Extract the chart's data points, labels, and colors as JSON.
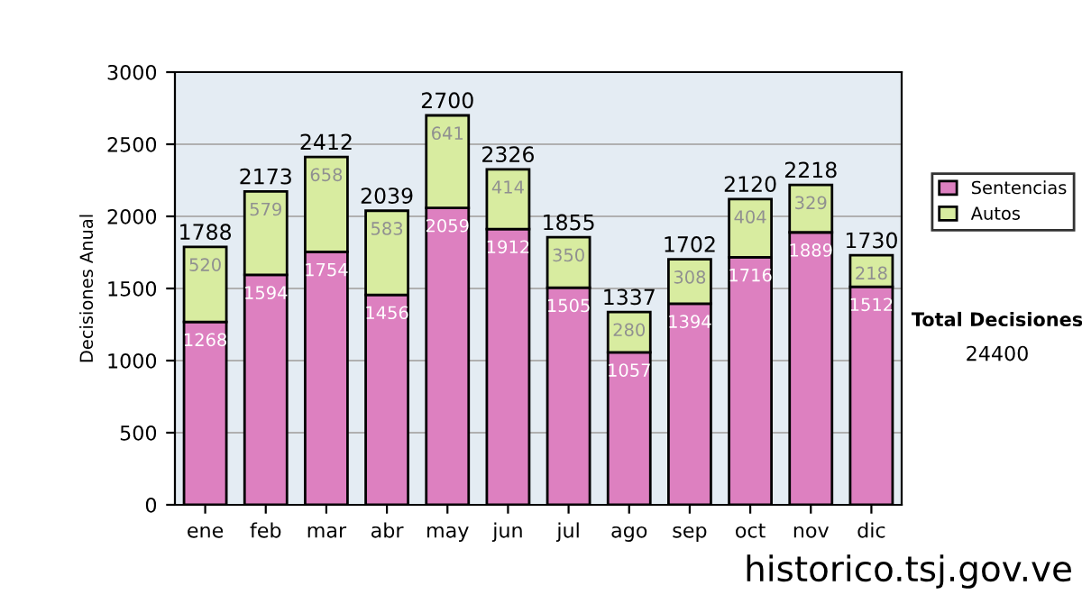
{
  "chart_data": {
    "type": "bar",
    "stacked": true,
    "ylabel": "Decisiones Anual",
    "categories": [
      "ene",
      "feb",
      "mar",
      "abr",
      "may",
      "jun",
      "jul",
      "ago",
      "sep",
      "oct",
      "nov",
      "dic"
    ],
    "series": [
      {
        "name": "Sentencias",
        "color": "#dd80c0",
        "values": [
          1268,
          1594,
          1754,
          1456,
          2059,
          1912,
          1505,
          1057,
          1394,
          1716,
          1889,
          1512
        ]
      },
      {
        "name": "Autos",
        "color": "#d8eca0",
        "values": [
          520,
          579,
          658,
          583,
          641,
          414,
          350,
          280,
          308,
          404,
          329,
          218
        ]
      }
    ],
    "totals": [
      "1788",
      "2173",
      "2412",
      "2039",
      "2700",
      "2326",
      "1855",
      "1337",
      "1702",
      "2120",
      "2218",
      "1730"
    ],
    "data_labels": true,
    "ylim": [
      0,
      3000
    ],
    "yticks": [
      0,
      500,
      1000,
      1500,
      2000,
      2500,
      3000
    ],
    "grid": "y",
    "legend": "right",
    "annotations": [
      "Total Decisiones",
      "24400",
      "historico.tsj.gov.ve"
    ]
  }
}
